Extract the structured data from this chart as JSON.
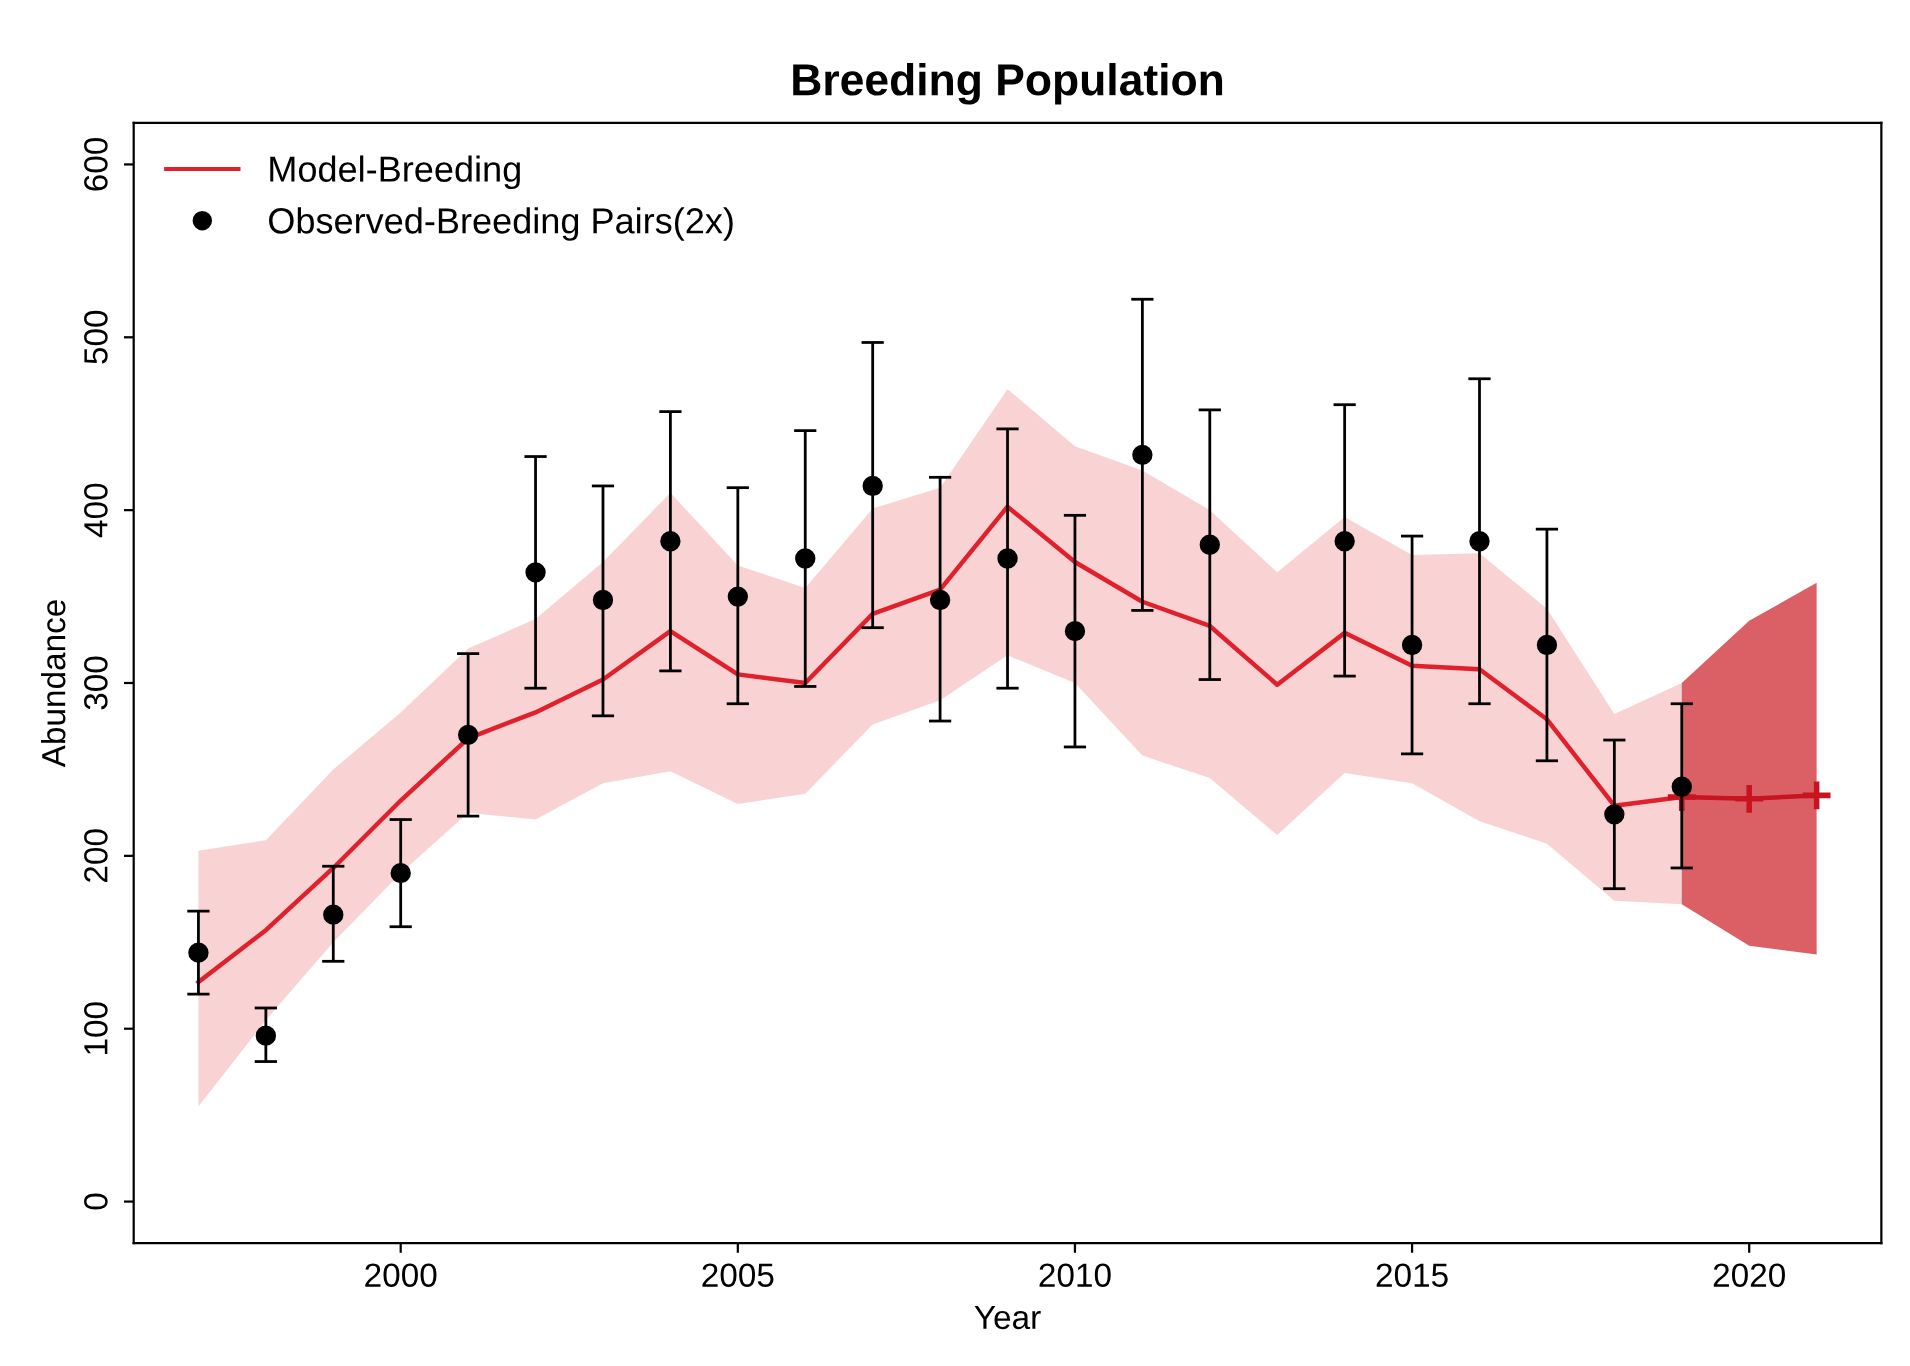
{
  "chart_data": {
    "type": "line",
    "title": "Breeding Population",
    "xlabel": "Year",
    "ylabel": "Abundance",
    "xlim": [
      1996.04,
      2021.96
    ],
    "ylim": [
      -24,
      624
    ],
    "xticks": [
      2000,
      2005,
      2010,
      2015,
      2020
    ],
    "yticks": [
      0,
      100,
      200,
      300,
      400,
      500,
      600
    ],
    "grid": false,
    "legend": "top left",
    "series": [
      {
        "name": "Model-Breeding",
        "color": "#e0202a",
        "marker": "none",
        "line_style": "solid",
        "x": [
          1997,
          1998,
          1999,
          2000,
          2001,
          2002,
          2003,
          2004,
          2005,
          2006,
          2007,
          2008,
          2009,
          2010,
          2011,
          2012,
          2013,
          2014,
          2015,
          2016,
          2017,
          2018,
          2019
        ],
        "values": [
          127,
          157,
          193,
          232,
          268,
          283,
          302,
          330,
          305,
          300,
          340,
          354,
          402,
          370,
          347,
          333,
          299,
          329,
          310,
          308,
          279,
          229,
          234
        ],
        "lower": [
          55,
          105,
          150,
          190,
          225,
          221,
          242,
          249,
          230,
          236,
          276,
          290,
          316,
          300,
          258,
          245,
          212,
          248,
          242,
          220,
          207,
          174,
          172
        ],
        "upper": [
          203,
          209,
          250,
          283,
          320,
          337,
          370,
          410,
          368,
          355,
          401,
          413,
          470,
          437,
          423,
          400,
          364,
          396,
          374,
          375,
          343,
          282,
          300
        ]
      },
      {
        "color": "#c8141e",
        "marker": "cross",
        "line_style": "solid",
        "x": [
          2019,
          2020,
          2021
        ],
        "values": [
          234,
          233,
          235
        ],
        "lower": [
          172,
          148,
          143
        ],
        "upper": [
          300,
          336,
          358
        ]
      },
      {
        "name": "Observed-Breeding Pairs(2x)",
        "type": "scatter",
        "color": "#000000",
        "marker": "circle",
        "x": [
          1997,
          1998,
          1999,
          2000,
          2001,
          2002,
          2003,
          2004,
          2005,
          2006,
          2007,
          2008,
          2009,
          2010,
          2011,
          2012,
          2014,
          2015,
          2016,
          2017,
          2018,
          2019
        ],
        "values": [
          144,
          96,
          166,
          190,
          270,
          364,
          348,
          382,
          350,
          372,
          414,
          348,
          372,
          330,
          432,
          380,
          382,
          322,
          382,
          322,
          224,
          240
        ],
        "errors": [
          [
            120,
            168
          ],
          [
            81,
            112
          ],
          [
            139,
            194
          ],
          [
            159,
            221
          ],
          [
            223,
            317
          ],
          [
            297,
            431
          ],
          [
            281,
            414
          ],
          [
            307,
            457
          ],
          [
            288,
            413
          ],
          [
            298,
            446
          ],
          [
            332,
            497
          ],
          [
            278,
            419
          ],
          [
            297,
            447
          ],
          [
            263,
            397
          ],
          [
            342,
            522
          ],
          [
            302,
            458
          ],
          [
            304,
            461
          ],
          [
            259,
            385
          ],
          [
            288,
            476
          ],
          [
            255,
            389
          ],
          [
            181,
            267
          ],
          [
            193,
            288
          ]
        ]
      }
    ]
  }
}
